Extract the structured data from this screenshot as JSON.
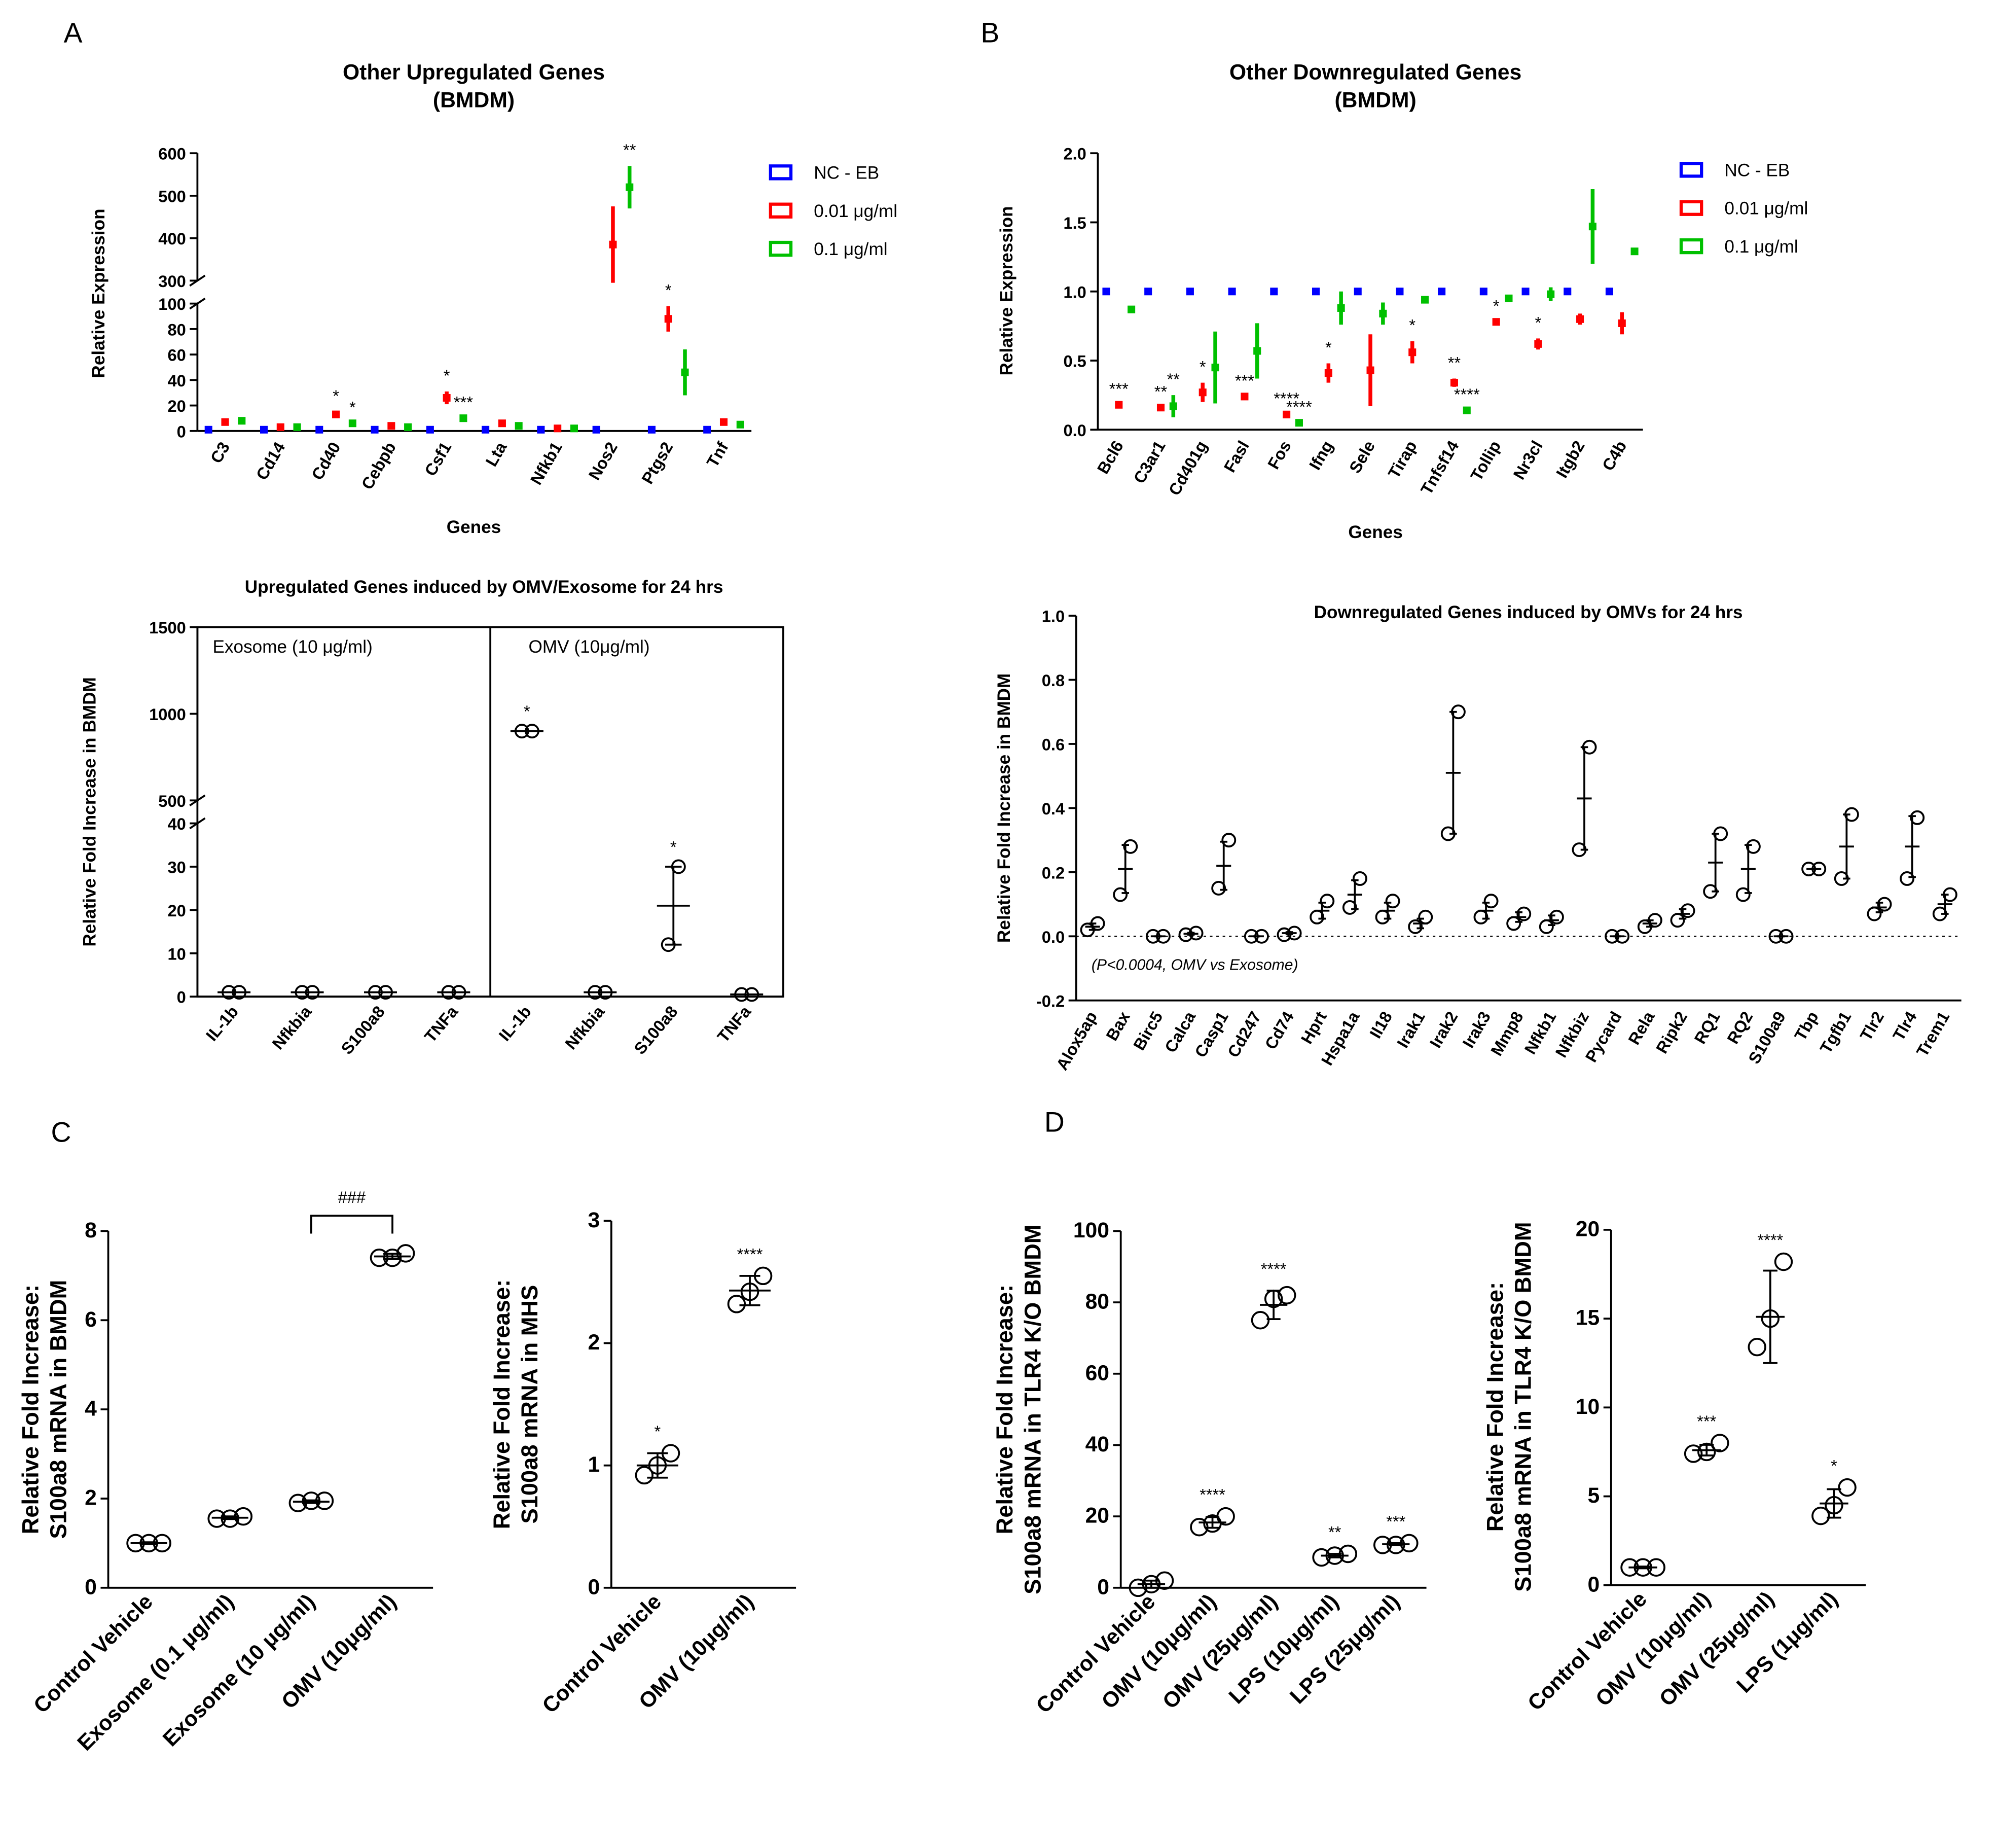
{
  "chart_data": [
    {
      "type": "dot",
      "panel": "A",
      "title": "Other Upregulated Genes",
      "subtitle": "(BMDM)",
      "xlabel": "Genes",
      "ylabel": [
        "Relative Expression"
      ],
      "categories": [
        "C3",
        "Cd14",
        "Cd40",
        "Cebpb",
        "Csf1",
        "Lta",
        "Nfkb1",
        "Nos2",
        "Ptgs2",
        "Tnf"
      ],
      "ylim": [
        0,
        600
      ],
      "axis_break": [
        100,
        300
      ],
      "yticks": [
        0,
        20,
        40,
        60,
        80,
        100,
        300,
        400,
        500,
        600
      ],
      "legend": "right",
      "series": [
        {
          "name": "NC - EB",
          "color": "#0000ff",
          "values": [
            1,
            1,
            1,
            1,
            1,
            1,
            1,
            1,
            1,
            1
          ]
        },
        {
          "name": "0.01 μg/ml",
          "color": "#ff0000",
          "values": [
            7,
            3,
            13,
            4,
            26,
            6,
            2,
            385,
            88,
            7
          ],
          "errors": [
            null,
            null,
            2,
            null,
            5,
            null,
            null,
            90,
            10,
            null
          ],
          "significance": [
            null,
            null,
            "*",
            null,
            "*",
            null,
            null,
            null,
            "*",
            null
          ]
        },
        {
          "name": "0.1 μg/ml",
          "color": "#00c000",
          "values": [
            8,
            3,
            6,
            3,
            10,
            4,
            2,
            520,
            46,
            5
          ],
          "errors": [
            null,
            null,
            null,
            null,
            null,
            null,
            null,
            50,
            18,
            null
          ],
          "significance": [
            null,
            null,
            "*",
            null,
            "***",
            null,
            null,
            "**",
            null,
            null
          ]
        }
      ]
    },
    {
      "type": "dot",
      "panel": "B",
      "title": "Other Downregulated Genes",
      "subtitle": "(BMDM)",
      "xlabel": "Genes",
      "ylabel": [
        "Relative Expression"
      ],
      "categories": [
        "Bcl6",
        "C3ar1",
        "Cd401g",
        "Fasl",
        "Fos",
        "Ifng",
        "Sele",
        "Tirap",
        "Tnfsf14",
        "Tollip",
        "Nr3cl",
        "Itgb2",
        "C4b"
      ],
      "ylim": [
        0,
        2
      ],
      "yticks": [
        {
          "value": 0,
          "label": "0.0"
        },
        0.5,
        {
          "value": 1,
          "label": "1.0"
        },
        1.5,
        {
          "value": 2,
          "label": "2.0"
        }
      ],
      "legend": "right",
      "series": [
        {
          "name": "NC - EB",
          "color": "#0000ff",
          "values": [
            1,
            1,
            1,
            1,
            1,
            1,
            1,
            1,
            1,
            1,
            1,
            1,
            1
          ]
        },
        {
          "name": "0.01 μg/ml",
          "color": "#ff0000",
          "values": [
            0.18,
            0.16,
            0.27,
            0.24,
            0.11,
            0.41,
            0.43,
            0.56,
            0.34,
            0.78,
            0.62,
            0.8,
            0.77
          ],
          "errors": [
            null,
            null,
            0.07,
            null,
            null,
            0.07,
            0.26,
            0.08,
            0.03,
            null,
            0.04,
            0.04,
            0.08
          ],
          "significance": [
            "***",
            "**",
            "*",
            "***",
            "****",
            "*",
            null,
            "*",
            "**",
            "*",
            "*",
            null,
            null
          ]
        },
        {
          "name": "0.1 μg/ml",
          "color": "#00c000",
          "values": [
            0.87,
            0.17,
            0.45,
            0.57,
            0.05,
            0.88,
            0.84,
            0.94,
            0.14,
            0.95,
            0.98,
            1.47,
            1.29
          ],
          "errors": [
            null,
            0.08,
            0.26,
            0.2,
            null,
            0.12,
            0.08,
            null,
            null,
            null,
            0.05,
            0.27,
            null
          ],
          "significance": [
            null,
            "**",
            null,
            null,
            "****",
            null,
            null,
            null,
            "****",
            null,
            null,
            null,
            null
          ]
        }
      ]
    },
    {
      "type": "grouped-replicates",
      "title": "Upregulated Genes induced by OMV/Exosome for 24 hrs",
      "ylabel": [
        "Relative Fold Increase in BMDM"
      ],
      "ylim": [
        0,
        1500
      ],
      "axis_break": [
        40,
        500
      ],
      "yticks": [
        0,
        10,
        20,
        30,
        40,
        500,
        1000,
        1500
      ],
      "groups": [
        {
          "name": "Exosome (10 μg/ml)",
          "categories": [
            "IL-1b",
            "Nfkbia",
            "S100a8",
            "TNFa"
          ],
          "points": [
            [
              1,
              1
            ],
            [
              1,
              1
            ],
            [
              1,
              1
            ],
            [
              1,
              1
            ]
          ],
          "means": [
            1,
            1,
            1,
            1
          ]
        },
        {
          "name": "OMV (10μg/ml)",
          "categories": [
            "IL-1b",
            "Nfkbia",
            "S100a8",
            "TNFa"
          ],
          "points": [
            [
              900,
              900
            ],
            [
              1,
              1
            ],
            [
              12,
              30
            ],
            [
              0.5,
              0.5
            ]
          ],
          "means": [
            900,
            1,
            21,
            0.5
          ],
          "sd": [
            null,
            null,
            9,
            null
          ],
          "significance": [
            "*",
            null,
            "*",
            null
          ]
        }
      ]
    },
    {
      "type": "replicates",
      "title": "Downregulated Genes induced by OMVs for 24 hrs",
      "ylabel": [
        "Relative Fold Increase in BMDM"
      ],
      "note": "(P<0.0004, OMV vs Exosome)",
      "baseline": 0,
      "ylim": [
        -0.2,
        1
      ],
      "yticks": [
        -0.2,
        {
          "value": 0,
          "label": "0.0"
        },
        0.2,
        0.4,
        0.6,
        0.8,
        {
          "value": 1,
          "label": "1.0"
        }
      ],
      "categories": [
        "Alox5ap",
        "Bax",
        "Birc5",
        "Calca",
        "Casp1",
        "Cd247",
        "Cd74",
        "Hprt",
        "Hspa1a",
        "Il18",
        "Irak1",
        "Irak2",
        "Irak3",
        "Mmp8",
        "Nfkb1",
        "Nfkbiz",
        "Pycard",
        "Rela",
        "Ripk2",
        "RQ1",
        "RQ2",
        "S100a9",
        "Tbp",
        "Tgfb1",
        "Tlr2",
        "Tlr4",
        "Trem1"
      ],
      "points": [
        [
          0.02,
          0.04
        ],
        [
          0.13,
          0.28
        ],
        [
          0,
          0
        ],
        [
          0.005,
          0.01
        ],
        [
          0.15,
          0.3
        ],
        [
          0,
          0
        ],
        [
          0.005,
          0.01
        ],
        [
          0.06,
          0.11
        ],
        [
          0.09,
          0.18
        ],
        [
          0.06,
          0.11
        ],
        [
          0.03,
          0.06
        ],
        [
          0.32,
          0.7
        ],
        [
          0.06,
          0.11
        ],
        [
          0.04,
          0.07
        ],
        [
          0.03,
          0.06
        ],
        [
          0.27,
          0.59
        ],
        [
          0,
          0
        ],
        [
          0.03,
          0.05
        ],
        [
          0.05,
          0.08
        ],
        [
          0.14,
          0.32
        ],
        [
          0.13,
          0.28
        ],
        [
          0,
          0
        ],
        [
          0.21,
          0.21
        ],
        [
          0.18,
          0.38
        ],
        [
          0.07,
          0.1
        ],
        [
          0.18,
          0.37
        ],
        [
          0.07,
          0.13
        ]
      ],
      "means": [
        0.03,
        0.21,
        0,
        0.008,
        0.22,
        0,
        0.01,
        0.08,
        0.13,
        0.08,
        0.04,
        0.51,
        0.08,
        0.06,
        0.05,
        0.43,
        0,
        0.04,
        0.07,
        0.23,
        0.21,
        0,
        0.21,
        0.28,
        0.09,
        0.28,
        0.1
      ],
      "sd": [
        0.01,
        0.075,
        0,
        0.003,
        0.075,
        0,
        0.003,
        0.025,
        0.045,
        0.025,
        0.015,
        0.19,
        0.025,
        0.015,
        0.015,
        0.16,
        0,
        0.01,
        0.015,
        0.09,
        0.075,
        0,
        0,
        0.1,
        0.015,
        0.095,
        0.03
      ]
    },
    {
      "type": "replicates",
      "panel": "C",
      "ylabel": [
        "Relative Fold Increase:",
        "S100a8 mRNA in BMDM"
      ],
      "ylim": [
        0,
        8
      ],
      "yticks": [
        0,
        2,
        4,
        6,
        8
      ],
      "categories": [
        "Control Vehicle",
        "Exosome (0.1 μg/ml)",
        "Exosome (10 μg/ml)",
        "OMV (10μg/ml)"
      ],
      "points": [
        [
          1,
          1,
          1
        ],
        [
          1.55,
          1.55,
          1.6
        ],
        [
          1.9,
          1.95,
          1.95
        ],
        [
          7.4,
          7.4,
          7.5
        ]
      ],
      "means": [
        1,
        1.57,
        1.93,
        7.43
      ],
      "sd": [
        0.02,
        0.03,
        0.03,
        0.06
      ],
      "bracket": {
        "categories": [
          "Exosome (10 μg/ml)",
          "OMV (10μg/ml)"
        ],
        "label": "###"
      }
    },
    {
      "type": "replicates",
      "ylabel": [
        "Relative Fold Increase:",
        "S100a8 mRNA in MHS"
      ],
      "ylim": [
        0,
        3
      ],
      "yticks": [
        0,
        1,
        2,
        3
      ],
      "categories": [
        "Control Vehicle",
        "OMV (10μg/ml)"
      ],
      "points": [
        [
          0.92,
          1,
          1.1
        ],
        [
          2.32,
          2.42,
          2.55
        ]
      ],
      "means": [
        1,
        2.43
      ],
      "sd": [
        0.1,
        0.12
      ],
      "significance": [
        "*",
        "****"
      ]
    },
    {
      "type": "replicates",
      "panel": "D",
      "ylabel": [
        "Relative Fold Increase:",
        "S100a8 mRNA in TLR4 K/O BMDM"
      ],
      "ylim": [
        0,
        100
      ],
      "yticks": [
        0,
        20,
        40,
        60,
        80,
        100
      ],
      "categories": [
        "Control Vehicle",
        "OMV (10μg/ml)",
        "OMV (25μg/ml)",
        "LPS (10μg/ml)",
        "LPS (25μg/ml)"
      ],
      "points": [
        [
          0,
          1,
          2
        ],
        [
          17,
          18,
          20
        ],
        [
          75,
          81,
          82
        ],
        [
          8.5,
          9,
          9.5
        ],
        [
          12,
          12,
          12.5
        ]
      ],
      "means": [
        1,
        18.3,
        79.3,
        9,
        12.2
      ],
      "sd": [
        1,
        1.5,
        4,
        0.5,
        0.3
      ],
      "significance": [
        null,
        "****",
        "****",
        "**",
        "***"
      ]
    },
    {
      "type": "replicates",
      "ylabel": [
        "Relative Fold Increase:",
        "S100a8 mRNA in TLR4 K/O BMDM"
      ],
      "ylim": [
        0,
        20
      ],
      "yticks": [
        0,
        5,
        10,
        15,
        20
      ],
      "categories": [
        "Control Vehicle",
        "OMV (10μg/ml)",
        "OMV (25μg/ml)",
        "LPS (1μg/ml)"
      ],
      "points": [
        [
          1,
          1,
          1
        ],
        [
          7.4,
          7.5,
          8
        ],
        [
          13.4,
          15,
          18.2
        ],
        [
          3.9,
          4.5,
          5.5
        ]
      ],
      "means": [
        1,
        7.6,
        15.1,
        4.6
      ],
      "sd": [
        0.05,
        0.3,
        2.6,
        0.8
      ],
      "significance": [
        null,
        "***",
        "****",
        "*"
      ]
    }
  ]
}
